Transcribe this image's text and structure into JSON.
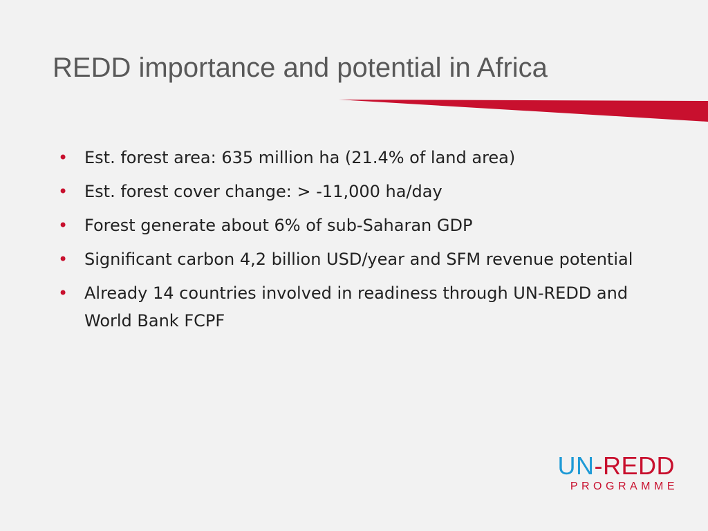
{
  "slide": {
    "title": "REDD importance and potential in Africa",
    "bullet_marker": "•",
    "bullets": [
      "Est. forest area: 635 million ha (21.4% of land area)",
      "Est. forest cover change: > -11,000 ha/day",
      "Forest generate about 6% of sub-Saharan GDP",
      "Significant carbon 4,2 billion USD/year and SFM revenue potential",
      "Already 14 countries involved in readiness through UN-REDD and World Bank FCPF"
    ]
  },
  "logo": {
    "un": "UN",
    "dash": "-",
    "redd": "REDD",
    "programme": "PROGRAMME"
  },
  "colors": {
    "background": "#f2f2f2",
    "title": "#595959",
    "accent_red": "#c8102e",
    "logo_blue": "#1e9ad6",
    "body_text": "#222222"
  }
}
